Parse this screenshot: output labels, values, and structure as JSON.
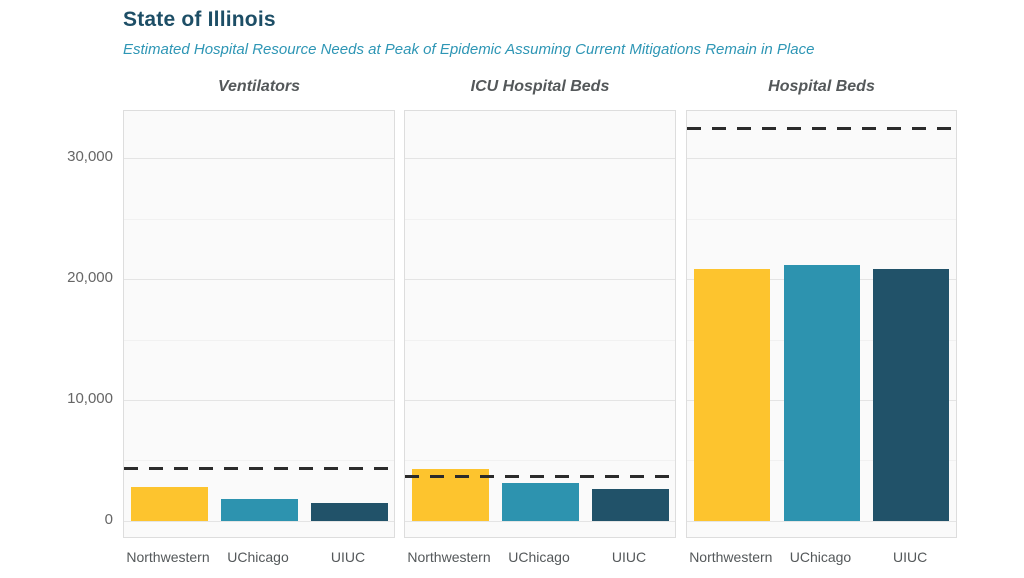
{
  "colors": {
    "title_text": "#1d4e66",
    "subtitle_text": "#2e96b5",
    "facet_title_text": "#54585a",
    "y_axis_text": "#666666",
    "x_axis_text": "#54585a",
    "panel_bg": "#fafafa",
    "panel_border": "#dddddd",
    "grid_major": "#e4e4e4",
    "grid_minor": "#f1f1f1",
    "capacity_line": "#2b2b2b",
    "series": {
      "Northwestern": "#fdc42e",
      "UChicago": "#2d93af",
      "UIUC": "#215269"
    }
  },
  "chart_data": {
    "type": "bar",
    "title": "State of Illinois",
    "subtitle": "Estimated Hospital Resource Needs at Peak of Epidemic Assuming Current Mitigations Remain in Place",
    "categories": [
      "Northwestern",
      "UChicago",
      "UIUC"
    ],
    "facets": [
      {
        "label": "Ventilators",
        "capacity_line_value": 4400,
        "values": [
          2800,
          1800,
          1450
        ]
      },
      {
        "label": "ICU Hospital Beds",
        "capacity_line_value": 3700,
        "values": [
          4250,
          3100,
          2650
        ]
      },
      {
        "label": "Hospital Beds",
        "capacity_line_value": 32500,
        "values": [
          20800,
          21200,
          20800
        ]
      }
    ],
    "y_axis": {
      "ticks": [
        0,
        10000,
        20000,
        30000
      ],
      "tick_labels": [
        "0",
        "10,000",
        "20,000",
        "30,000"
      ],
      "minor_gridlines": [
        5000,
        15000,
        25000
      ],
      "ylim": [
        -1500,
        33900
      ],
      "grid": "on",
      "legend": "none"
    }
  }
}
